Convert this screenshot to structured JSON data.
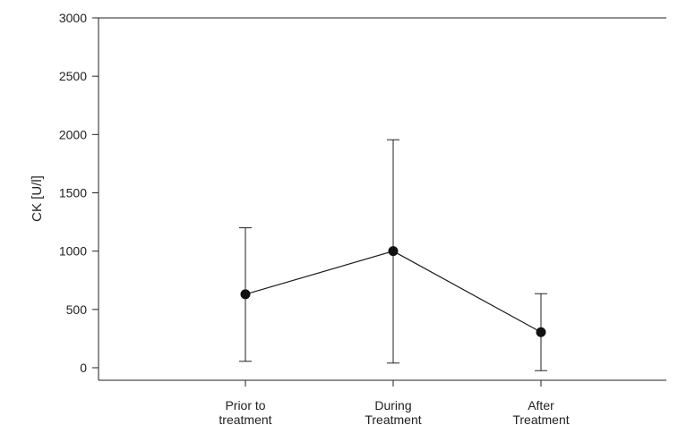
{
  "chart_data": {
    "type": "line",
    "title": "",
    "xlabel": "",
    "ylabel": "CK [U/l]",
    "ylim": [
      -80,
      3000
    ],
    "yticks": [
      0,
      500,
      1000,
      1500,
      2000,
      2500,
      3000
    ],
    "grid": false,
    "categories": [
      [
        "Prior to",
        "treatment"
      ],
      [
        "During",
        "Treatment"
      ],
      [
        "After",
        "Treatment"
      ]
    ],
    "series": [
      {
        "values": [
          630,
          1000,
          305
        ],
        "error_low": [
          55,
          40,
          -25
        ],
        "error_high": [
          1200,
          1955,
          635
        ]
      }
    ],
    "colors": {
      "line": "#1a1a1a",
      "marker": "#111111"
    }
  }
}
